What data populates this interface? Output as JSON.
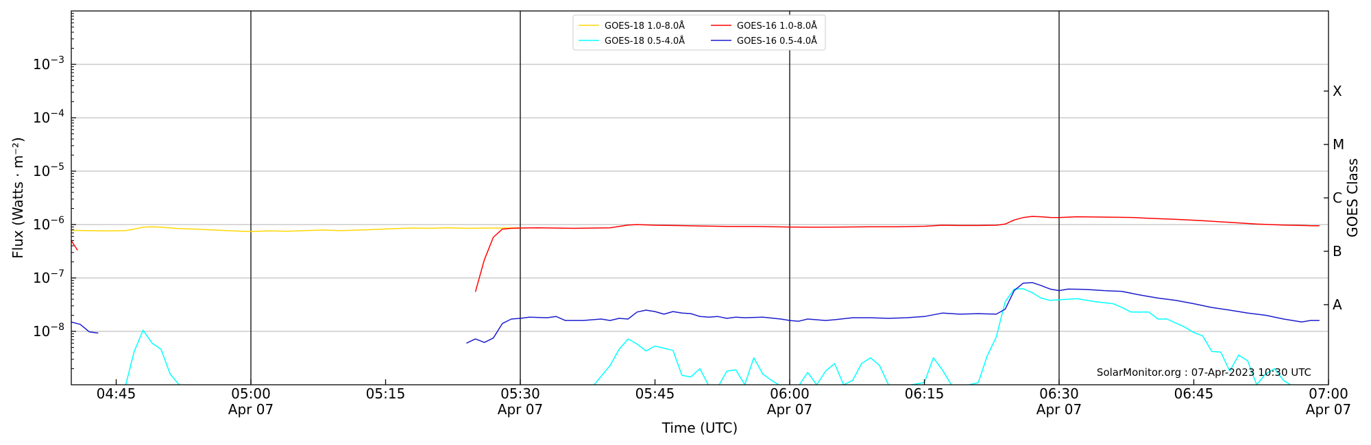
{
  "chart_data": {
    "type": "line",
    "title": "",
    "xlabel": "Time (UTC)",
    "ylabel": "Flux (Watts · m⁻²)",
    "y2label": "GOES Class",
    "yscale": "log",
    "ylim": [
      1e-09,
      0.01
    ],
    "xlim": [
      "04:40",
      "07:00"
    ],
    "date": "Apr 07",
    "x_ticks": [
      {
        "time": "04:45",
        "label": "04:45",
        "date_label": ""
      },
      {
        "time": "05:00",
        "label": "05:00",
        "date_label": "Apr 07"
      },
      {
        "time": "05:15",
        "label": "05:15",
        "date_label": ""
      },
      {
        "time": "05:30",
        "label": "05:30",
        "date_label": "Apr 07"
      },
      {
        "time": "05:45",
        "label": "05:45",
        "date_label": ""
      },
      {
        "time": "06:00",
        "label": "06:00",
        "date_label": "Apr 07"
      },
      {
        "time": "06:15",
        "label": "06:15",
        "date_label": ""
      },
      {
        "time": "06:30",
        "label": "06:30",
        "date_label": "Apr 07"
      },
      {
        "time": "06:45",
        "label": "06:45",
        "date_label": ""
      },
      {
        "time": "07:00",
        "label": "07:00",
        "date_label": "Apr 07"
      }
    ],
    "vertical_lines": [
      "05:00",
      "05:30",
      "06:00",
      "06:30"
    ],
    "y_ticks": [
      {
        "value": 1e-08,
        "base": "10",
        "exp": "−8"
      },
      {
        "value": 1e-07,
        "base": "10",
        "exp": "−7"
      },
      {
        "value": 1e-06,
        "base": "10",
        "exp": "−6"
      },
      {
        "value": 1e-05,
        "base": "10",
        "exp": "−5"
      },
      {
        "value": 0.0001,
        "base": "10",
        "exp": "−4"
      },
      {
        "value": 0.001,
        "base": "10",
        "exp": "−3"
      }
    ],
    "goes_classes": [
      {
        "label": "A",
        "value": 3.16e-08
      },
      {
        "label": "B",
        "value": 3.16e-07
      },
      {
        "label": "C",
        "value": 3.16e-06
      },
      {
        "label": "M",
        "value": 3.16e-05
      },
      {
        "label": "X",
        "value": 0.000316
      }
    ],
    "grid": true,
    "legend_position": "top-center",
    "credit": "SolarMonitor.org : 07-Apr-2023 10:30 UTC",
    "series": [
      {
        "name": "GOES-18 1.0-8.0Å",
        "color": "#FFD700",
        "points": [
          [
            "04:40",
            7.8e-07
          ],
          [
            "04:42",
            7.7e-07
          ],
          [
            "04:44",
            7.6e-07
          ],
          [
            "04:46",
            7.7e-07
          ],
          [
            "04:47",
            8.2e-07
          ],
          [
            "04:48",
            8.9e-07
          ],
          [
            "04:49",
            9.1e-07
          ],
          [
            "04:50",
            8.9e-07
          ],
          [
            "04:52",
            8.4e-07
          ],
          [
            "04:54",
            8.2e-07
          ],
          [
            "04:56",
            7.9e-07
          ],
          [
            "04:58",
            7.6e-07
          ],
          [
            "05:00",
            7.4e-07
          ],
          [
            "05:02",
            7.6e-07
          ],
          [
            "05:04",
            7.5e-07
          ],
          [
            "05:06",
            7.7e-07
          ],
          [
            "05:08",
            7.9e-07
          ],
          [
            "05:10",
            7.7e-07
          ],
          [
            "05:12",
            7.9e-07
          ],
          [
            "05:14",
            8.1e-07
          ],
          [
            "05:16",
            8.4e-07
          ],
          [
            "05:18",
            8.6e-07
          ],
          [
            "05:20",
            8.5e-07
          ],
          [
            "05:22",
            8.7e-07
          ],
          [
            "05:24",
            8.5e-07
          ],
          [
            "05:26",
            8.6e-07
          ],
          [
            "05:28",
            8.6e-07
          ],
          [
            "05:30",
            8.7e-07
          ]
        ]
      },
      {
        "name": "GOES-18 0.5-4.0Å",
        "color": "#00FFFF",
        "points": [
          [
            "04:44",
            9.5e-10
          ],
          [
            "04:46",
            9e-10
          ],
          [
            "04:47",
            4.2e-09
          ],
          [
            "04:48",
            1.05e-08
          ],
          [
            "04:49",
            6e-09
          ],
          [
            "04:50",
            4.6e-09
          ],
          [
            "04:51",
            1.6e-09
          ],
          [
            "04:52",
            1e-09
          ],
          [
            "04:53",
            9e-10
          ],
          [
            "05:38",
            9e-10
          ],
          [
            "05:40",
            2.3e-09
          ],
          [
            "05:41",
            4.6e-09
          ],
          [
            "05:42",
            7.2e-09
          ],
          [
            "05:43",
            5.8e-09
          ],
          [
            "05:44",
            4.3e-09
          ],
          [
            "05:45",
            5.3e-09
          ],
          [
            "05:47",
            4.4e-09
          ],
          [
            "05:48",
            1.5e-09
          ],
          [
            "05:49",
            1.4e-09
          ],
          [
            "05:50",
            2e-09
          ],
          [
            "05:51",
            9.5e-10
          ],
          [
            "05:52",
            9e-10
          ],
          [
            "05:53",
            1.8e-09
          ],
          [
            "05:54",
            1.9e-09
          ],
          [
            "05:55",
            1e-09
          ],
          [
            "05:56",
            3.2e-09
          ],
          [
            "05:57",
            1.6e-09
          ],
          [
            "05:58",
            1.2e-09
          ],
          [
            "05:59",
            9.5e-10
          ],
          [
            "06:00",
            9e-10
          ],
          [
            "06:01",
            9.5e-10
          ],
          [
            "06:02",
            1.7e-09
          ],
          [
            "06:03",
            1e-09
          ],
          [
            "06:04",
            1.8e-09
          ],
          [
            "06:05",
            2.5e-09
          ],
          [
            "06:06",
            1e-09
          ],
          [
            "06:07",
            1.2e-09
          ],
          [
            "06:08",
            2.5e-09
          ],
          [
            "06:09",
            3.2e-09
          ],
          [
            "06:10",
            2.3e-09
          ],
          [
            "06:11",
            1e-09
          ],
          [
            "06:12",
            9e-10
          ],
          [
            "06:15",
            1.1e-09
          ],
          [
            "06:16",
            3.2e-09
          ],
          [
            "06:17",
            1.9e-09
          ],
          [
            "06:18",
            1e-09
          ],
          [
            "06:19",
            9e-10
          ],
          [
            "06:20",
            1e-09
          ],
          [
            "06:21",
            1.1e-09
          ],
          [
            "06:22",
            3.5e-09
          ],
          [
            "06:23",
            7.8e-09
          ],
          [
            "06:24",
            3.6e-08
          ],
          [
            "06:25",
            6.2e-08
          ],
          [
            "06:26",
            6.3e-08
          ],
          [
            "06:27",
            5.3e-08
          ],
          [
            "06:28",
            4.2e-08
          ],
          [
            "06:29",
            3.8e-08
          ],
          [
            "06:30",
            3.9e-08
          ],
          [
            "06:32",
            4.1e-08
          ],
          [
            "06:34",
            3.6e-08
          ],
          [
            "06:36",
            3.3e-08
          ],
          [
            "06:37",
            2.8e-08
          ],
          [
            "06:38",
            2.3e-08
          ],
          [
            "06:40",
            2.3e-08
          ],
          [
            "06:41",
            1.7e-08
          ],
          [
            "06:42",
            1.7e-08
          ],
          [
            "06:44",
            1.2e-08
          ],
          [
            "06:45",
            9.5e-09
          ],
          [
            "06:46",
            8.2e-09
          ],
          [
            "06:47",
            4.2e-09
          ],
          [
            "06:48",
            4.1e-09
          ],
          [
            "06:49",
            1.8e-09
          ],
          [
            "06:50",
            3.6e-09
          ],
          [
            "06:51",
            2.8e-09
          ],
          [
            "06:52",
            1e-09
          ],
          [
            "06:53",
            1.6e-09
          ],
          [
            "06:54",
            2e-09
          ],
          [
            "06:55",
            1.2e-09
          ],
          [
            "06:56",
            9.5e-10
          ]
        ]
      },
      {
        "name": "GOES-16 1.0-8.0Å",
        "color": "#FF0000",
        "segments": [
          [
            [
              "04:40",
              5e-07
            ],
            [
              "04:40.7",
              3.3e-07
            ]
          ],
          [
            [
              "05:25",
              5.5e-08
            ],
            [
              "05:26",
              2.2e-07
            ],
            [
              "05:27",
              5.8e-07
            ],
            [
              "05:28",
              8.2e-07
            ],
            [
              "05:29",
              8.5e-07
            ],
            [
              "05:30",
              8.6e-07
            ],
            [
              "05:32",
              8.7e-07
            ],
            [
              "05:34",
              8.6e-07
            ],
            [
              "05:36",
              8.5e-07
            ],
            [
              "05:38",
              8.6e-07
            ],
            [
              "05:40",
              8.7e-07
            ],
            [
              "05:41",
              9.2e-07
            ],
            [
              "05:42",
              9.8e-07
            ],
            [
              "05:43",
              1e-06
            ],
            [
              "05:45",
              9.7e-07
            ],
            [
              "05:47",
              9.6e-07
            ],
            [
              "05:50",
              9.4e-07
            ],
            [
              "05:53",
              9.2e-07
            ],
            [
              "05:56",
              9.2e-07
            ],
            [
              "06:00",
              9e-07
            ],
            [
              "06:03",
              8.9e-07
            ],
            [
              "06:06",
              9e-07
            ],
            [
              "06:09",
              9.1e-07
            ],
            [
              "06:12",
              9.1e-07
            ],
            [
              "06:15",
              9.3e-07
            ],
            [
              "06:17",
              9.7e-07
            ],
            [
              "06:19",
              9.6e-07
            ],
            [
              "06:21",
              9.6e-07
            ],
            [
              "06:23",
              9.7e-07
            ],
            [
              "06:24",
              1.02e-06
            ],
            [
              "06:25",
              1.22e-06
            ],
            [
              "06:26",
              1.35e-06
            ],
            [
              "06:27",
              1.42e-06
            ],
            [
              "06:28",
              1.4e-06
            ],
            [
              "06:29",
              1.36e-06
            ],
            [
              "06:30",
              1.35e-06
            ],
            [
              "06:32",
              1.4e-06
            ],
            [
              "06:35",
              1.38e-06
            ],
            [
              "06:38",
              1.36e-06
            ],
            [
              "06:40",
              1.31e-06
            ],
            [
              "06:43",
              1.25e-06
            ],
            [
              "06:46",
              1.18e-06
            ],
            [
              "06:49",
              1.1e-06
            ],
            [
              "06:52",
              1.02e-06
            ],
            [
              "06:55",
              9.8e-07
            ],
            [
              "06:58",
              9.5e-07
            ],
            [
              "06:59",
              9.5e-07
            ]
          ]
        ]
      },
      {
        "name": "GOES-16 0.5-4.0Å",
        "color": "#1A1ACD",
        "segments": [
          [
            [
              "04:40",
              1.5e-08
            ],
            [
              "04:41",
              1.35e-08
            ],
            [
              "04:42",
              9.8e-09
            ],
            [
              "04:43",
              9.3e-09
            ]
          ],
          [
            [
              "05:24",
              6e-09
            ],
            [
              "05:25",
              7.2e-09
            ],
            [
              "05:26",
              6.2e-09
            ],
            [
              "05:27",
              7.5e-09
            ],
            [
              "05:28",
              1.4e-08
            ],
            [
              "05:29",
              1.7e-08
            ],
            [
              "05:30",
              1.75e-08
            ],
            [
              "05:31",
              1.85e-08
            ],
            [
              "05:33",
              1.8e-08
            ],
            [
              "05:34",
              1.9e-08
            ],
            [
              "05:35",
              1.6e-08
            ],
            [
              "05:37",
              1.6e-08
            ],
            [
              "05:39",
              1.7e-08
            ],
            [
              "05:40",
              1.6e-08
            ],
            [
              "05:41",
              1.75e-08
            ],
            [
              "05:42",
              1.7e-08
            ],
            [
              "05:43",
              2.3e-08
            ],
            [
              "05:44",
              2.5e-08
            ],
            [
              "05:45",
              2.35e-08
            ],
            [
              "05:46",
              2.1e-08
            ],
            [
              "05:47",
              2.35e-08
            ],
            [
              "05:48",
              2.2e-08
            ],
            [
              "05:49",
              2.15e-08
            ],
            [
              "05:50",
              1.9e-08
            ],
            [
              "05:51",
              1.85e-08
            ],
            [
              "05:52",
              1.9e-08
            ],
            [
              "05:53",
              1.75e-08
            ],
            [
              "05:54",
              1.85e-08
            ],
            [
              "05:55",
              1.8e-08
            ],
            [
              "05:57",
              1.85e-08
            ],
            [
              "05:59",
              1.7e-08
            ],
            [
              "06:00",
              1.6e-08
            ],
            [
              "06:01",
              1.55e-08
            ],
            [
              "06:02",
              1.7e-08
            ],
            [
              "06:04",
              1.6e-08
            ],
            [
              "06:05",
              1.65e-08
            ],
            [
              "06:07",
              1.8e-08
            ],
            [
              "06:09",
              1.8e-08
            ],
            [
              "06:11",
              1.75e-08
            ],
            [
              "06:13",
              1.8e-08
            ],
            [
              "06:15",
              1.9e-08
            ],
            [
              "06:17",
              2.2e-08
            ],
            [
              "06:19",
              2.1e-08
            ],
            [
              "06:21",
              2.15e-08
            ],
            [
              "06:23",
              2.1e-08
            ],
            [
              "06:24",
              2.6e-08
            ],
            [
              "06:25",
              5.8e-08
            ],
            [
              "06:26",
              8e-08
            ],
            [
              "06:27",
              8.2e-08
            ],
            [
              "06:28",
              7.2e-08
            ],
            [
              "06:29",
              6.2e-08
            ],
            [
              "06:30",
              5.8e-08
            ],
            [
              "06:31",
              6.2e-08
            ],
            [
              "06:33",
              6.1e-08
            ],
            [
              "06:35",
              5.8e-08
            ],
            [
              "06:37",
              5.6e-08
            ],
            [
              "06:39",
              4.8e-08
            ],
            [
              "06:41",
              4.2e-08
            ],
            [
              "06:43",
              3.8e-08
            ],
            [
              "06:45",
              3.3e-08
            ],
            [
              "06:47",
              2.8e-08
            ],
            [
              "06:49",
              2.5e-08
            ],
            [
              "06:51",
              2.2e-08
            ],
            [
              "06:53",
              2e-08
            ],
            [
              "06:55",
              1.7e-08
            ],
            [
              "06:56",
              1.6e-08
            ],
            [
              "06:57",
              1.5e-08
            ],
            [
              "06:58",
              1.6e-08
            ],
            [
              "06:59",
              1.6e-08
            ]
          ]
        ]
      }
    ]
  }
}
